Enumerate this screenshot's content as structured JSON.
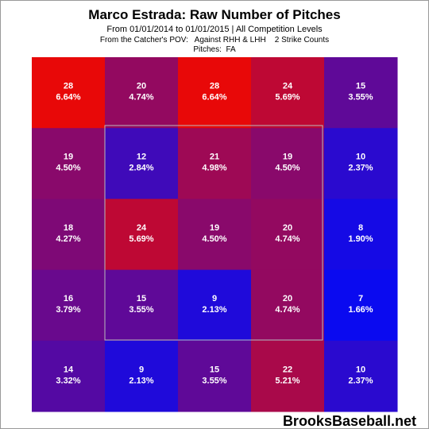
{
  "chart_data": {
    "type": "heatmap",
    "title": "Marco Estrada: Raw Number of Pitches",
    "subtitles": [
      "From 01/01/2014 to 01/01/2015 | All Competition Levels",
      "From the Catcher's POV:   Against RHH & LHH    2 Strike Counts",
      "Pitches:  FA"
    ],
    "columns": 5,
    "values": [
      28,
      20,
      28,
      24,
      15,
      19,
      12,
      21,
      19,
      10,
      18,
      24,
      19,
      20,
      8,
      16,
      15,
      9,
      20,
      7,
      14,
      9,
      15,
      22,
      10
    ],
    "percents": {
      "values": [
        6.64,
        4.74,
        6.64,
        5.69,
        3.55,
        4.5,
        2.84,
        4.98,
        4.5,
        2.37,
        4.27,
        5.69,
        4.5,
        4.74,
        1.9,
        3.79,
        3.55,
        2.13,
        4.74,
        1.66,
        3.32,
        2.13,
        3.55,
        5.21,
        2.37
      ],
      "value_labels": [
        "6.64%",
        "4.74%",
        "6.64%",
        "5.69%",
        "3.55%",
        "4.50%",
        "2.84%",
        "4.98%",
        "4.50%",
        "2.37%",
        "4.27%",
        "5.69%",
        "4.50%",
        "4.74%",
        "1.90%",
        "3.79%",
        "3.55%",
        "2.13%",
        "4.74%",
        "1.66%",
        "3.32%",
        "2.13%",
        "3.55%",
        "5.21%",
        "2.37%"
      ]
    },
    "color_low": "#0a0af0",
    "color_high": "#e80808",
    "source": "BrooksBaseball.net"
  }
}
